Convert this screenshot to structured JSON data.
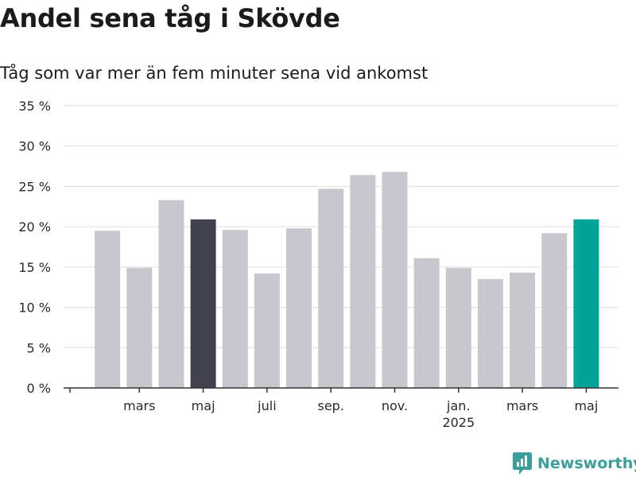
{
  "header": {
    "title": "Andel sena tåg i Skövde",
    "subtitle": "Tåg som var mer än fem minuter sena vid ankomst"
  },
  "brand": {
    "name": "Newsworthy",
    "icon": "newsworthy-logo-icon",
    "color": "#3a9e9a"
  },
  "colors": {
    "bar": "#c8c7ce",
    "highlight_dark": "#42414e",
    "highlight_accent": "#00a398",
    "grid": "#dddddd",
    "axis": "#333333"
  },
  "chart_data": {
    "type": "bar",
    "title": "Andel sena tåg i Skövde",
    "subtitle": "Tåg som var mer än fem minuter sena vid ankomst",
    "xlabel": "",
    "ylabel": "",
    "x": [
      "2024-01",
      "2024-02",
      "2024-03",
      "2024-04",
      "2024-05",
      "2024-06",
      "2024-07",
      "2024-08",
      "2024-09",
      "2024-10",
      "2024-11",
      "2024-12",
      "2025-01",
      "2025-02",
      "2025-03",
      "2025-04",
      "2025-05"
    ],
    "values": [
      null,
      19.5,
      14.9,
      23.3,
      20.9,
      19.6,
      14.2,
      19.8,
      24.7,
      26.4,
      26.8,
      16.1,
      14.9,
      13.5,
      14.3,
      19.2,
      20.9
    ],
    "highlight": {
      "2024-05": "highlight_dark",
      "2025-05": "highlight_accent"
    },
    "ylim": [
      0,
      35
    ],
    "yticks": [
      0,
      5,
      10,
      15,
      20,
      25,
      30,
      35
    ],
    "ytick_labels": [
      "0 %",
      "5 %",
      "10 %",
      "15 %",
      "20 %",
      "25 %",
      "30 %",
      "35 %"
    ],
    "xticks": [
      {
        "at": "2024-03",
        "label": "mars",
        "sublabel": ""
      },
      {
        "at": "2024-05",
        "label": "maj",
        "sublabel": ""
      },
      {
        "at": "2024-07",
        "label": "juli",
        "sublabel": ""
      },
      {
        "at": "2024-09",
        "label": "sep.",
        "sublabel": ""
      },
      {
        "at": "2024-11",
        "label": "nov.",
        "sublabel": ""
      },
      {
        "at": "2025-01",
        "label": "jan.",
        "sublabel": "2025"
      },
      {
        "at": "2025-03",
        "label": "mars",
        "sublabel": ""
      },
      {
        "at": "2025-05",
        "label": "maj",
        "sublabel": ""
      }
    ],
    "grid": true,
    "legend": "none"
  }
}
